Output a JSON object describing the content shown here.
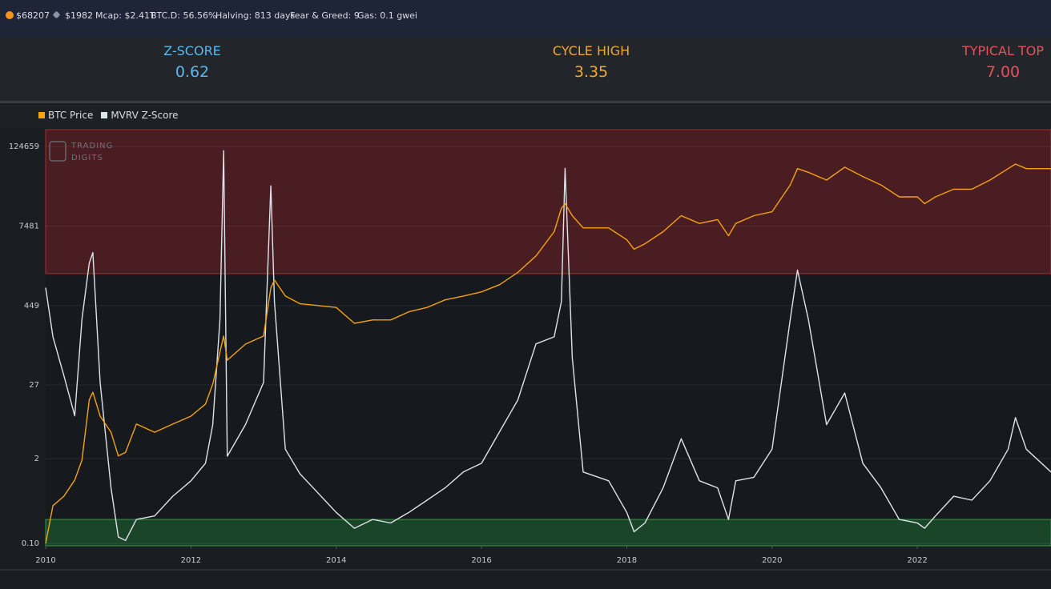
{
  "ticker": [
    "$68207",
    "$1982",
    "Mcap: $2.41T",
    "BTC.D: 56.56%",
    "Halving: 813 days",
    "Fear & Greed: 9",
    "Gas: 0.1 gwei"
  ],
  "stats": [
    {
      "label": "Z-SCORE",
      "value": "0.62",
      "color": "#5bb8f0"
    },
    {
      "label": "CYCLE HIGH",
      "value": "3.35",
      "color": "#f0a830"
    },
    {
      "label": "TYPICAL TOP",
      "value": "7.00",
      "color": "#e8505a"
    }
  ],
  "watermark": [
    "TRADING",
    "DIGITS"
  ],
  "chart_data": {
    "type": "line",
    "yscale": "log",
    "grid": true,
    "xlim": [
      2010,
      2023.84
    ],
    "xticks": [
      2010,
      2012,
      2014,
      2016,
      2018,
      2020,
      2022
    ],
    "ylim": [
      0.0919,
      226000
    ],
    "yticks": [
      {
        "value": 0.1,
        "label": "0.10"
      },
      2,
      27,
      449,
      7481,
      124659
    ],
    "y2lim": [
      -0.75,
      11.1
    ],
    "bands": [
      {
        "axis": "y2",
        "from": 7,
        "to": 11.1,
        "color": "#4a1d22",
        "border": "#b0282e"
      },
      {
        "axis": "y2",
        "from": -0.75,
        "to": 0,
        "color": "#1b4529",
        "border": "#2e9a4a"
      }
    ],
    "x": [
      2010,
      2010.1,
      2010.25,
      2010.4,
      2010.5,
      2010.6,
      2010.65,
      2010.75,
      2010.9,
      2011,
      2011.1,
      2011.25,
      2011.5,
      2011.75,
      2012,
      2012.2,
      2012.3,
      2012.4,
      2012.45,
      2012.5,
      2012.75,
      2013,
      2013.1,
      2013.15,
      2013.3,
      2013.5,
      2014,
      2014.25,
      2014.5,
      2014.75,
      2015,
      2015.25,
      2015.5,
      2015.75,
      2016,
      2016.25,
      2016.5,
      2016.75,
      2017,
      2017.1,
      2017.15,
      2017.25,
      2017.4,
      2017.75,
      2018,
      2018.1,
      2018.25,
      2018.5,
      2018.75,
      2019,
      2019.25,
      2019.4,
      2019.5,
      2019.75,
      2020,
      2020.25,
      2020.35,
      2020.5,
      2020.75,
      2021,
      2021.25,
      2021.5,
      2021.75,
      2022,
      2022.1,
      2022.25,
      2022.5,
      2022.75,
      2023,
      2023.25,
      2023.35,
      2023.5,
      2023.84
    ],
    "series": [
      {
        "name": "BTC Price",
        "color": "#f5a20f",
        "values": [
          0.1,
          0.38,
          0.53,
          0.94,
          1.9,
          16,
          21,
          9,
          5.1,
          2.2,
          2.5,
          6.8,
          5.1,
          6.8,
          9,
          13.8,
          28,
          87,
          153,
          65,
          115,
          153,
          840,
          1110,
          630,
          480,
          420,
          240,
          270,
          270,
          360,
          420,
          550,
          630,
          730,
          940,
          1450,
          2600,
          6130,
          14000,
          16500,
          10800,
          7000,
          7000,
          4600,
          3300,
          4000,
          6130,
          10800,
          8200,
          9400,
          5300,
          8200,
          10800,
          12400,
          32000,
          57000,
          50000,
          38000,
          60000,
          43000,
          32000,
          21000,
          21000,
          16500,
          21000,
          27500,
          27500,
          38000,
          57000,
          67000,
          57000,
          57000
        ]
      },
      {
        "name": "MVRV Z-Score",
        "color": "#dde3ea",
        "axis": "y2",
        "values": [
          6.6,
          5.2,
          4.1,
          2.95,
          5.7,
          7.3,
          7.6,
          3.9,
          0.9,
          -0.5,
          -0.6,
          0,
          0.1,
          0.66,
          1.1,
          1.6,
          2.7,
          5.7,
          10.5,
          1.8,
          2.7,
          3.9,
          9.5,
          6.2,
          2,
          1.3,
          0.2,
          -0.25,
          0,
          -0.1,
          0.2,
          0.55,
          0.9,
          1.35,
          1.6,
          2.5,
          3.4,
          5,
          5.2,
          6.2,
          10,
          4.6,
          1.35,
          1.1,
          0.2,
          -0.35,
          -0.1,
          0.9,
          2.3,
          1.1,
          0.9,
          0,
          1.1,
          1.2,
          2,
          5.7,
          7.1,
          5.7,
          2.7,
          3.6,
          1.6,
          0.9,
          0,
          -0.1,
          -0.25,
          0.1,
          0.66,
          0.55,
          1.1,
          2,
          2.9,
          2,
          1.35
        ]
      }
    ]
  }
}
